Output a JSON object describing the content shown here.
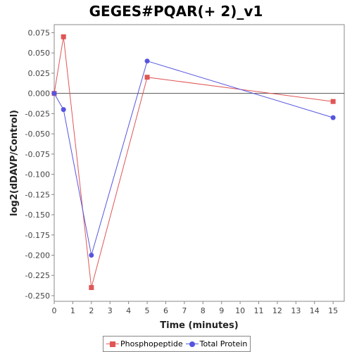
{
  "chart_data": {
    "type": "line",
    "title": "GEGES#PQAR(+ 2)_v1",
    "xlabel": "Time (minutes)",
    "ylabel": "log2(dDAVP/Control)",
    "xlim": [
      0,
      15.6
    ],
    "ylim": [
      -0.257,
      0.085
    ],
    "x_ticks": [
      0,
      1,
      2,
      3,
      4,
      5,
      6,
      7,
      8,
      9,
      10,
      11,
      12,
      13,
      14,
      15
    ],
    "y_ticks": [
      0.075,
      0.05,
      0.025,
      0.0,
      -0.025,
      -0.05,
      -0.075,
      -0.1,
      -0.125,
      -0.15,
      -0.175,
      -0.2,
      -0.225,
      -0.25
    ],
    "y_tick_labels": [
      "0.075",
      "0.050",
      "0.025",
      "0.000",
      "-0.025",
      "-0.050",
      "-0.075",
      "-0.100",
      "-0.125",
      "-0.150",
      "-0.175",
      "-0.200",
      "-0.225",
      "-0.250"
    ],
    "zero_line": true,
    "grid": false,
    "legend_position": "bottom-center",
    "series": [
      {
        "name": "Phosphopeptide",
        "color": "#e05555",
        "marker": "square",
        "x": [
          0,
          0.5,
          2,
          5,
          15
        ],
        "y": [
          0.0,
          0.07,
          -0.24,
          0.02,
          -0.01
        ]
      },
      {
        "name": "Total Protein",
        "color": "#5555e0",
        "marker": "circle",
        "x": [
          0,
          0.5,
          2,
          5,
          15
        ],
        "y": [
          0.0,
          -0.02,
          -0.2,
          0.04,
          -0.03
        ]
      }
    ]
  }
}
